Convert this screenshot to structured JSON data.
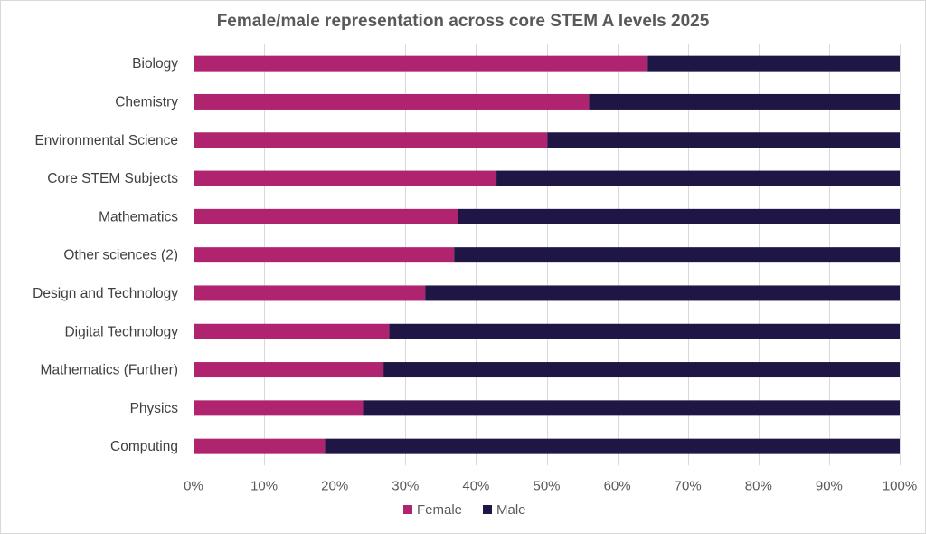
{
  "chart_data": {
    "type": "bar",
    "orientation": "horizontal",
    "stacked": "percent",
    "title": "Female/male representation across core STEM A levels 2025",
    "categories": [
      "Biology",
      "Chemistry",
      "Environmental Science",
      "Core STEM Subjects",
      "Mathematics",
      "Other sciences (2)",
      "Design and Technology",
      "Digital Technology",
      "Mathematics (Further)",
      "Physics",
      "Computing"
    ],
    "series": [
      {
        "name": "Female",
        "color": "#b0236f",
        "values": [
          64.3,
          56.0,
          50.1,
          42.9,
          37.4,
          36.9,
          32.8,
          27.7,
          26.9,
          24.0,
          18.6
        ]
      },
      {
        "name": "Male",
        "color": "#1f1646",
        "values": [
          35.7,
          44.0,
          49.9,
          57.1,
          62.6,
          63.1,
          67.2,
          72.3,
          73.1,
          76.0,
          81.4
        ]
      }
    ],
    "xaxis": {
      "range": [
        0,
        100
      ],
      "ticks": [
        0,
        10,
        20,
        30,
        40,
        50,
        60,
        70,
        80,
        90,
        100
      ],
      "tick_labels": [
        "0%",
        "10%",
        "20%",
        "30%",
        "40%",
        "50%",
        "60%",
        "70%",
        "80%",
        "90%",
        "100%"
      ]
    },
    "grid": true,
    "legend": {
      "position": "bottom",
      "entries": [
        "Female",
        "Male"
      ]
    }
  }
}
